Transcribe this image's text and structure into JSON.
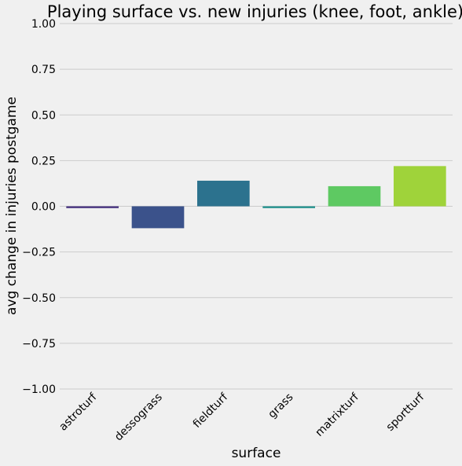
{
  "chart_data": {
    "type": "bar",
    "title": "Playing surface vs. new injuries (knee, foot, ankle)",
    "xlabel": "surface",
    "ylabel": "avg change in injuries postgame",
    "ylim": [
      -1.0,
      1.0
    ],
    "yticks": [
      1.0,
      0.75,
      0.5,
      0.25,
      0.0,
      -0.25,
      -0.5,
      -0.75,
      -1.0
    ],
    "ytick_labels": [
      "1.00",
      "0.75",
      "0.50",
      "0.25",
      "0.00",
      "−0.25",
      "−0.50",
      "−0.75",
      "−1.00"
    ],
    "categories": [
      "astroturf",
      "dessograss",
      "fieldturf",
      "grass",
      "matrixturf",
      "sportturf"
    ],
    "values": [
      -0.01,
      -0.12,
      0.14,
      -0.01,
      0.11,
      0.22
    ],
    "colors": [
      "#46327e",
      "#3b528b",
      "#2c728e",
      "#21918c",
      "#5ec962",
      "#9fd33a"
    ],
    "grid": true,
    "background": "#f0f0f0"
  }
}
